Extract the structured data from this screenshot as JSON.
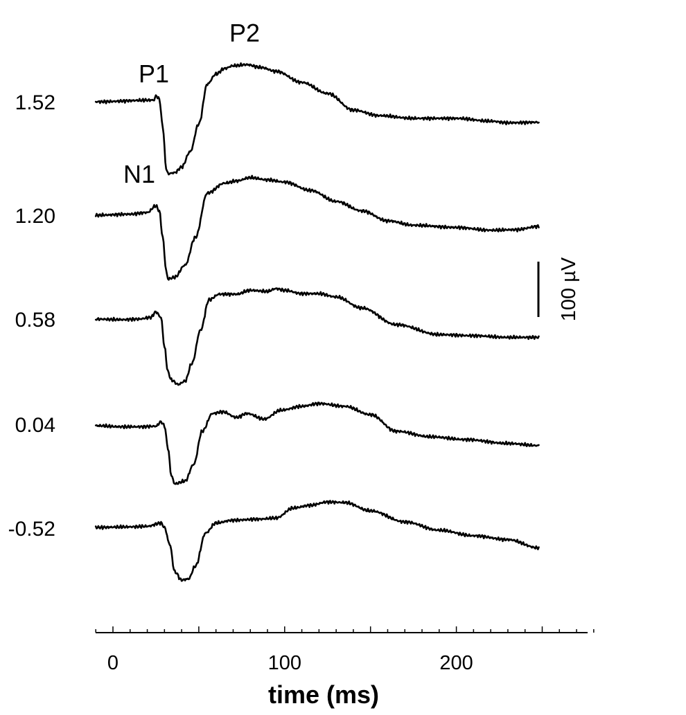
{
  "chart_data": {
    "type": "line",
    "title": "",
    "xlabel": "time (ms)",
    "ylabel": "",
    "xlim": [
      -10,
      280
    ],
    "x_ticks": [
      0,
      100,
      200
    ],
    "x_tick_labels": [
      "0",
      "100",
      "200"
    ],
    "x_minor_step": 10,
    "scale_bar": {
      "value": 100,
      "label": "100 µV"
    },
    "annotations": [
      {
        "label": "P1",
        "series": "1.52",
        "x": 26,
        "y": 10
      },
      {
        "label": "N1",
        "series": "1.52",
        "x": 31,
        "y": -130
      },
      {
        "label": "P2",
        "series": "1.52",
        "x": 78,
        "y": 65
      }
    ],
    "series": [
      {
        "name": "1.52",
        "keypoints": [
          [
            -10,
            0
          ],
          [
            24,
            3
          ],
          [
            25,
            11
          ],
          [
            27,
            5
          ],
          [
            29,
            -45
          ],
          [
            31,
            -120
          ],
          [
            32,
            -130
          ],
          [
            36,
            -128
          ],
          [
            40,
            -118
          ],
          [
            45,
            -90
          ],
          [
            50,
            -40
          ],
          [
            55,
            32
          ],
          [
            60,
            50
          ],
          [
            65,
            60
          ],
          [
            70,
            65
          ],
          [
            78,
            67
          ],
          [
            86,
            62
          ],
          [
            95,
            55
          ],
          [
            110,
            35
          ],
          [
            125,
            15
          ],
          [
            140,
            -15
          ],
          [
            155,
            -25
          ],
          [
            175,
            -30
          ],
          [
            200,
            -30
          ],
          [
            220,
            -35
          ],
          [
            230,
            -38
          ],
          [
            248,
            -37
          ]
        ]
      },
      {
        "name": "1.20",
        "keypoints": [
          [
            -10,
            0
          ],
          [
            10,
            2
          ],
          [
            20,
            5
          ],
          [
            25,
            17
          ],
          [
            27,
            8
          ],
          [
            29,
            -40
          ],
          [
            31,
            -100
          ],
          [
            32,
            -115
          ],
          [
            36,
            -112
          ],
          [
            42,
            -90
          ],
          [
            48,
            -40
          ],
          [
            55,
            40
          ],
          [
            65,
            58
          ],
          [
            72,
            62
          ],
          [
            80,
            68
          ],
          [
            90,
            64
          ],
          [
            100,
            60
          ],
          [
            115,
            45
          ],
          [
            130,
            25
          ],
          [
            145,
            8
          ],
          [
            160,
            -10
          ],
          [
            175,
            -18
          ],
          [
            200,
            -22
          ],
          [
            220,
            -27
          ],
          [
            235,
            -26
          ],
          [
            248,
            -20
          ]
        ]
      },
      {
        "name": "0.58",
        "keypoints": [
          [
            -10,
            0
          ],
          [
            5,
            -1
          ],
          [
            15,
            0
          ],
          [
            22,
            3
          ],
          [
            25,
            13
          ],
          [
            28,
            3
          ],
          [
            30,
            -50
          ],
          [
            32,
            -95
          ],
          [
            34,
            -110
          ],
          [
            38,
            -118
          ],
          [
            42,
            -112
          ],
          [
            46,
            -80
          ],
          [
            51,
            -20
          ],
          [
            56,
            35
          ],
          [
            62,
            45
          ],
          [
            72,
            45
          ],
          [
            80,
            52
          ],
          [
            90,
            50
          ],
          [
            95,
            55
          ],
          [
            100,
            52
          ],
          [
            110,
            46
          ],
          [
            120,
            46
          ],
          [
            130,
            40
          ],
          [
            145,
            20
          ],
          [
            165,
            -10
          ],
          [
            190,
            -28
          ],
          [
            210,
            -30
          ],
          [
            230,
            -33
          ],
          [
            248,
            -33
          ]
        ]
      },
      {
        "name": "0.04",
        "keypoints": [
          [
            -10,
            0
          ],
          [
            5,
            -2
          ],
          [
            15,
            -2
          ],
          [
            25,
            -1
          ],
          [
            28,
            7
          ],
          [
            30,
            0
          ],
          [
            32,
            -40
          ],
          [
            34,
            -90
          ],
          [
            36,
            -105
          ],
          [
            42,
            -100
          ],
          [
            47,
            -70
          ],
          [
            52,
            -10
          ],
          [
            58,
            22
          ],
          [
            64,
            25
          ],
          [
            72,
            15
          ],
          [
            78,
            22
          ],
          [
            88,
            12
          ],
          [
            98,
            28
          ],
          [
            110,
            35
          ],
          [
            120,
            40
          ],
          [
            135,
            35
          ],
          [
            150,
            20
          ],
          [
            165,
            -10
          ],
          [
            185,
            -20
          ],
          [
            205,
            -25
          ],
          [
            230,
            -32
          ],
          [
            248,
            -36
          ]
        ]
      },
      {
        "name": "-0.52",
        "keypoints": [
          [
            -10,
            0
          ],
          [
            10,
            1
          ],
          [
            20,
            2
          ],
          [
            28,
            8
          ],
          [
            30,
            0
          ],
          [
            33,
            -30
          ],
          [
            36,
            -80
          ],
          [
            40,
            -95
          ],
          [
            44,
            -93
          ],
          [
            48,
            -70
          ],
          [
            54,
            -10
          ],
          [
            60,
            8
          ],
          [
            70,
            13
          ],
          [
            85,
            15
          ],
          [
            95,
            17
          ],
          [
            105,
            35
          ],
          [
            115,
            40
          ],
          [
            125,
            46
          ],
          [
            135,
            45
          ],
          [
            150,
            30
          ],
          [
            170,
            10
          ],
          [
            190,
            -5
          ],
          [
            210,
            -15
          ],
          [
            230,
            -22
          ],
          [
            248,
            -37
          ]
        ]
      }
    ],
    "row_labels": [
      "1.52",
      "1.20",
      "0.58",
      "0.04",
      "-0.52"
    ],
    "legend": "none",
    "grid": false
  }
}
